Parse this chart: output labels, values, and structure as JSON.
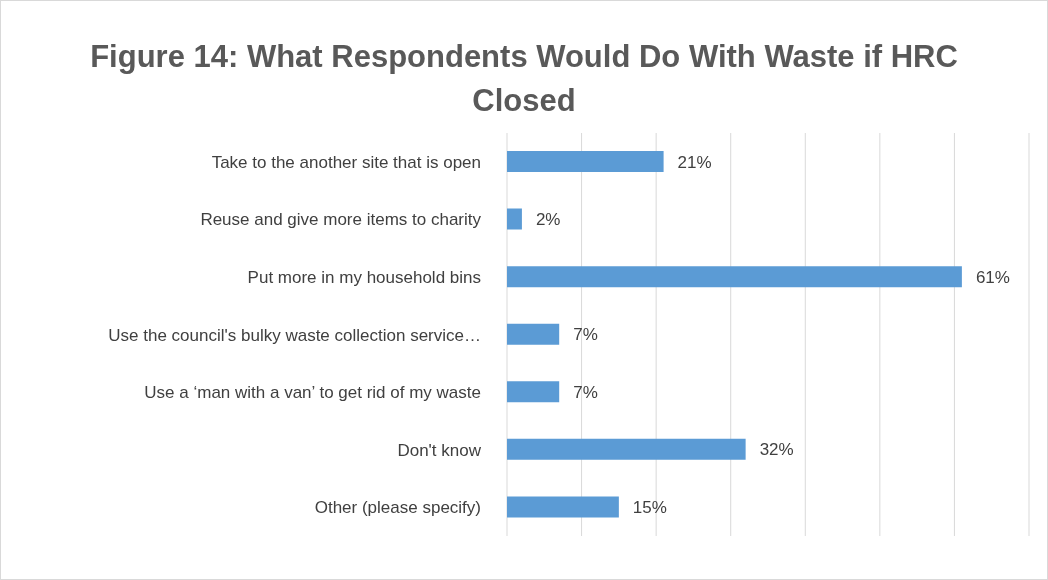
{
  "chart_data": {
    "type": "bar",
    "orientation": "horizontal",
    "title": "Figure 14: What Respondents Would Do With Waste if HRC Closed",
    "categories": [
      "Take to the another site that is open",
      "Reuse and give more items to charity",
      "Put more in my household bins",
      "Use the council's bulky waste collection service…",
      "Use a ‘man with a van’ to get rid of my waste",
      "Don't know",
      "Other (please specify)"
    ],
    "values": [
      21,
      2,
      61,
      7,
      7,
      32,
      15
    ],
    "value_labels": [
      "21%",
      "2%",
      "61%",
      "7%",
      "7%",
      "32%",
      "15%"
    ],
    "color": "#5b9bd5",
    "xlim": [
      0,
      70
    ],
    "xticks": [
      {
        "value": 0,
        "label": null
      },
      {
        "value": 10,
        "label": null
      },
      {
        "value": 20,
        "label": null
      },
      {
        "value": 30,
        "label": null
      },
      {
        "value": 40,
        "label": null
      },
      {
        "value": 50,
        "label": null
      },
      {
        "value": 60,
        "label": null
      },
      {
        "value": 70,
        "label": null
      }
    ],
    "grid": "x",
    "tick_labels": "y",
    "legend": false
  }
}
